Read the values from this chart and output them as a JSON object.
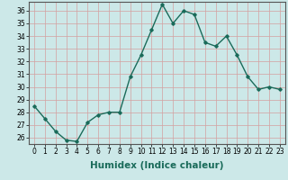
{
  "x": [
    0,
    1,
    2,
    3,
    4,
    5,
    6,
    7,
    8,
    9,
    10,
    11,
    12,
    13,
    14,
    15,
    16,
    17,
    18,
    19,
    20,
    21,
    22,
    23
  ],
  "y": [
    28.5,
    27.5,
    26.5,
    25.8,
    25.7,
    27.2,
    27.8,
    28.0,
    28.0,
    30.8,
    32.5,
    34.5,
    36.5,
    35.0,
    36.0,
    35.7,
    33.5,
    33.2,
    34.0,
    32.5,
    30.8,
    29.8,
    30.0,
    29.8
  ],
  "xlabel": "Humidex (Indice chaleur)",
  "ylabel": "",
  "ylim": [
    25.5,
    36.7
  ],
  "xlim": [
    -0.5,
    23.5
  ],
  "yticks": [
    26,
    27,
    28,
    29,
    30,
    31,
    32,
    33,
    34,
    35,
    36
  ],
  "xticks": [
    0,
    1,
    2,
    3,
    4,
    5,
    6,
    7,
    8,
    9,
    10,
    11,
    12,
    13,
    14,
    15,
    16,
    17,
    18,
    19,
    20,
    21,
    22,
    23
  ],
  "xtick_labels": [
    "0",
    "1",
    "2",
    "3",
    "4",
    "5",
    "6",
    "7",
    "8",
    "9",
    "10",
    "11",
    "12",
    "13",
    "14",
    "15",
    "16",
    "17",
    "18",
    "19",
    "20",
    "21",
    "22",
    "23"
  ],
  "line_color": "#1a6b5a",
  "marker": "D",
  "marker_size": 1.8,
  "bg_color": "#cce8e8",
  "grid_color": "#d4a0a0",
  "line_width": 1.0,
  "tick_fontsize": 5.5,
  "xlabel_fontsize": 7.5
}
